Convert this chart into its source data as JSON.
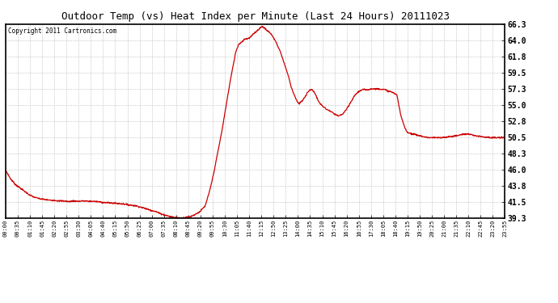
{
  "title": "Outdoor Temp (vs) Heat Index per Minute (Last 24 Hours) 20111023",
  "copyright": "Copyright 2011 Cartronics.com",
  "line_color": "#cc0000",
  "bg_color": "#ffffff",
  "plot_bg_color": "#ffffff",
  "grid_color": "#bbbbbb",
  "ylim": [
    39.3,
    66.3
  ],
  "yticks": [
    39.3,
    41.5,
    43.8,
    46.0,
    48.3,
    50.5,
    52.8,
    55.0,
    57.3,
    59.5,
    61.8,
    64.0,
    66.3
  ],
  "xtick_labels": [
    "00:00",
    "00:35",
    "01:10",
    "01:45",
    "02:20",
    "02:55",
    "03:30",
    "04:05",
    "04:40",
    "05:15",
    "05:50",
    "06:25",
    "07:00",
    "07:35",
    "08:10",
    "08:45",
    "09:20",
    "09:55",
    "10:30",
    "11:05",
    "11:40",
    "12:15",
    "12:50",
    "13:25",
    "14:00",
    "14:35",
    "15:10",
    "15:45",
    "16:20",
    "16:55",
    "17:30",
    "18:05",
    "18:40",
    "19:15",
    "19:50",
    "20:25",
    "21:00",
    "21:35",
    "22:10",
    "22:45",
    "23:20",
    "23:55"
  ],
  "data_key_points": [
    [
      0,
      46.0
    ],
    [
      35,
      44.8
    ],
    [
      70,
      44.0
    ],
    [
      105,
      43.5
    ],
    [
      140,
      43.0
    ],
    [
      175,
      42.5
    ],
    [
      210,
      42.2
    ],
    [
      245,
      42.0
    ],
    [
      280,
      41.9
    ],
    [
      315,
      41.8
    ],
    [
      350,
      41.8
    ],
    [
      385,
      41.7
    ],
    [
      420,
      41.7
    ],
    [
      455,
      41.6
    ],
    [
      490,
      41.7
    ],
    [
      525,
      41.65
    ],
    [
      560,
      41.7
    ],
    [
      595,
      41.65
    ],
    [
      630,
      41.65
    ],
    [
      665,
      41.6
    ],
    [
      700,
      41.5
    ],
    [
      735,
      41.45
    ],
    [
      770,
      41.4
    ],
    [
      805,
      41.35
    ],
    [
      840,
      41.3
    ],
    [
      875,
      41.2
    ],
    [
      910,
      41.1
    ],
    [
      945,
      41.0
    ],
    [
      980,
      40.8
    ],
    [
      1015,
      40.6
    ],
    [
      1050,
      40.4
    ],
    [
      1085,
      40.2
    ],
    [
      1120,
      39.9
    ],
    [
      1155,
      39.7
    ],
    [
      1190,
      39.5
    ],
    [
      1225,
      39.4
    ],
    [
      1260,
      39.3
    ],
    [
      1295,
      39.4
    ],
    [
      1330,
      39.5
    ],
    [
      1365,
      39.8
    ],
    [
      1400,
      40.2
    ],
    [
      1435,
      40.9
    ],
    [
      1440,
      41.1
    ],
    [
      1470,
      43.0
    ],
    [
      1500,
      45.5
    ],
    [
      1530,
      48.5
    ],
    [
      1560,
      51.5
    ],
    [
      1590,
      55.0
    ],
    [
      1620,
      58.5
    ],
    [
      1640,
      60.5
    ],
    [
      1660,
      62.5
    ],
    [
      1680,
      63.5
    ],
    [
      1700,
      63.8
    ],
    [
      1720,
      64.2
    ],
    [
      1740,
      64.3
    ],
    [
      1760,
      64.4
    ],
    [
      1780,
      64.8
    ],
    [
      1800,
      65.2
    ],
    [
      1820,
      65.5
    ],
    [
      1835,
      65.8
    ],
    [
      1850,
      66.0
    ],
    [
      1865,
      65.8
    ],
    [
      1880,
      65.5
    ],
    [
      1900,
      65.2
    ],
    [
      1920,
      64.8
    ],
    [
      1950,
      63.8
    ],
    [
      1980,
      62.5
    ],
    [
      2010,
      60.8
    ],
    [
      2040,
      59.0
    ],
    [
      2060,
      57.5
    ],
    [
      2080,
      56.5
    ],
    [
      2100,
      55.6
    ],
    [
      2115,
      55.2
    ],
    [
      2130,
      55.5
    ],
    [
      2145,
      55.8
    ],
    [
      2160,
      56.2
    ],
    [
      2175,
      56.8
    ],
    [
      2190,
      57.1
    ],
    [
      2205,
      57.2
    ],
    [
      2220,
      57.0
    ],
    [
      2235,
      56.5
    ],
    [
      2250,
      55.8
    ],
    [
      2265,
      55.3
    ],
    [
      2280,
      55.0
    ],
    [
      2310,
      54.5
    ],
    [
      2340,
      54.2
    ],
    [
      2370,
      53.8
    ],
    [
      2400,
      53.5
    ],
    [
      2430,
      53.8
    ],
    [
      2460,
      54.5
    ],
    [
      2490,
      55.5
    ],
    [
      2520,
      56.5
    ],
    [
      2550,
      57.0
    ],
    [
      2580,
      57.2
    ],
    [
      2610,
      57.2
    ],
    [
      2640,
      57.3
    ],
    [
      2670,
      57.3
    ],
    [
      2700,
      57.3
    ],
    [
      2730,
      57.2
    ],
    [
      2760,
      57.0
    ],
    [
      2790,
      56.8
    ],
    [
      2820,
      56.5
    ],
    [
      2850,
      53.5
    ],
    [
      2880,
      51.8
    ],
    [
      2900,
      51.2
    ],
    [
      2940,
      51.0
    ],
    [
      2980,
      50.8
    ],
    [
      3020,
      50.6
    ],
    [
      3060,
      50.5
    ],
    [
      3100,
      50.5
    ],
    [
      3140,
      50.5
    ],
    [
      3180,
      50.6
    ],
    [
      3220,
      50.7
    ],
    [
      3260,
      50.8
    ],
    [
      3300,
      51.0
    ],
    [
      3340,
      51.0
    ],
    [
      3380,
      50.8
    ],
    [
      3420,
      50.7
    ],
    [
      3460,
      50.6
    ],
    [
      3500,
      50.5
    ],
    [
      3540,
      50.5
    ],
    [
      3600,
      50.5
    ]
  ]
}
